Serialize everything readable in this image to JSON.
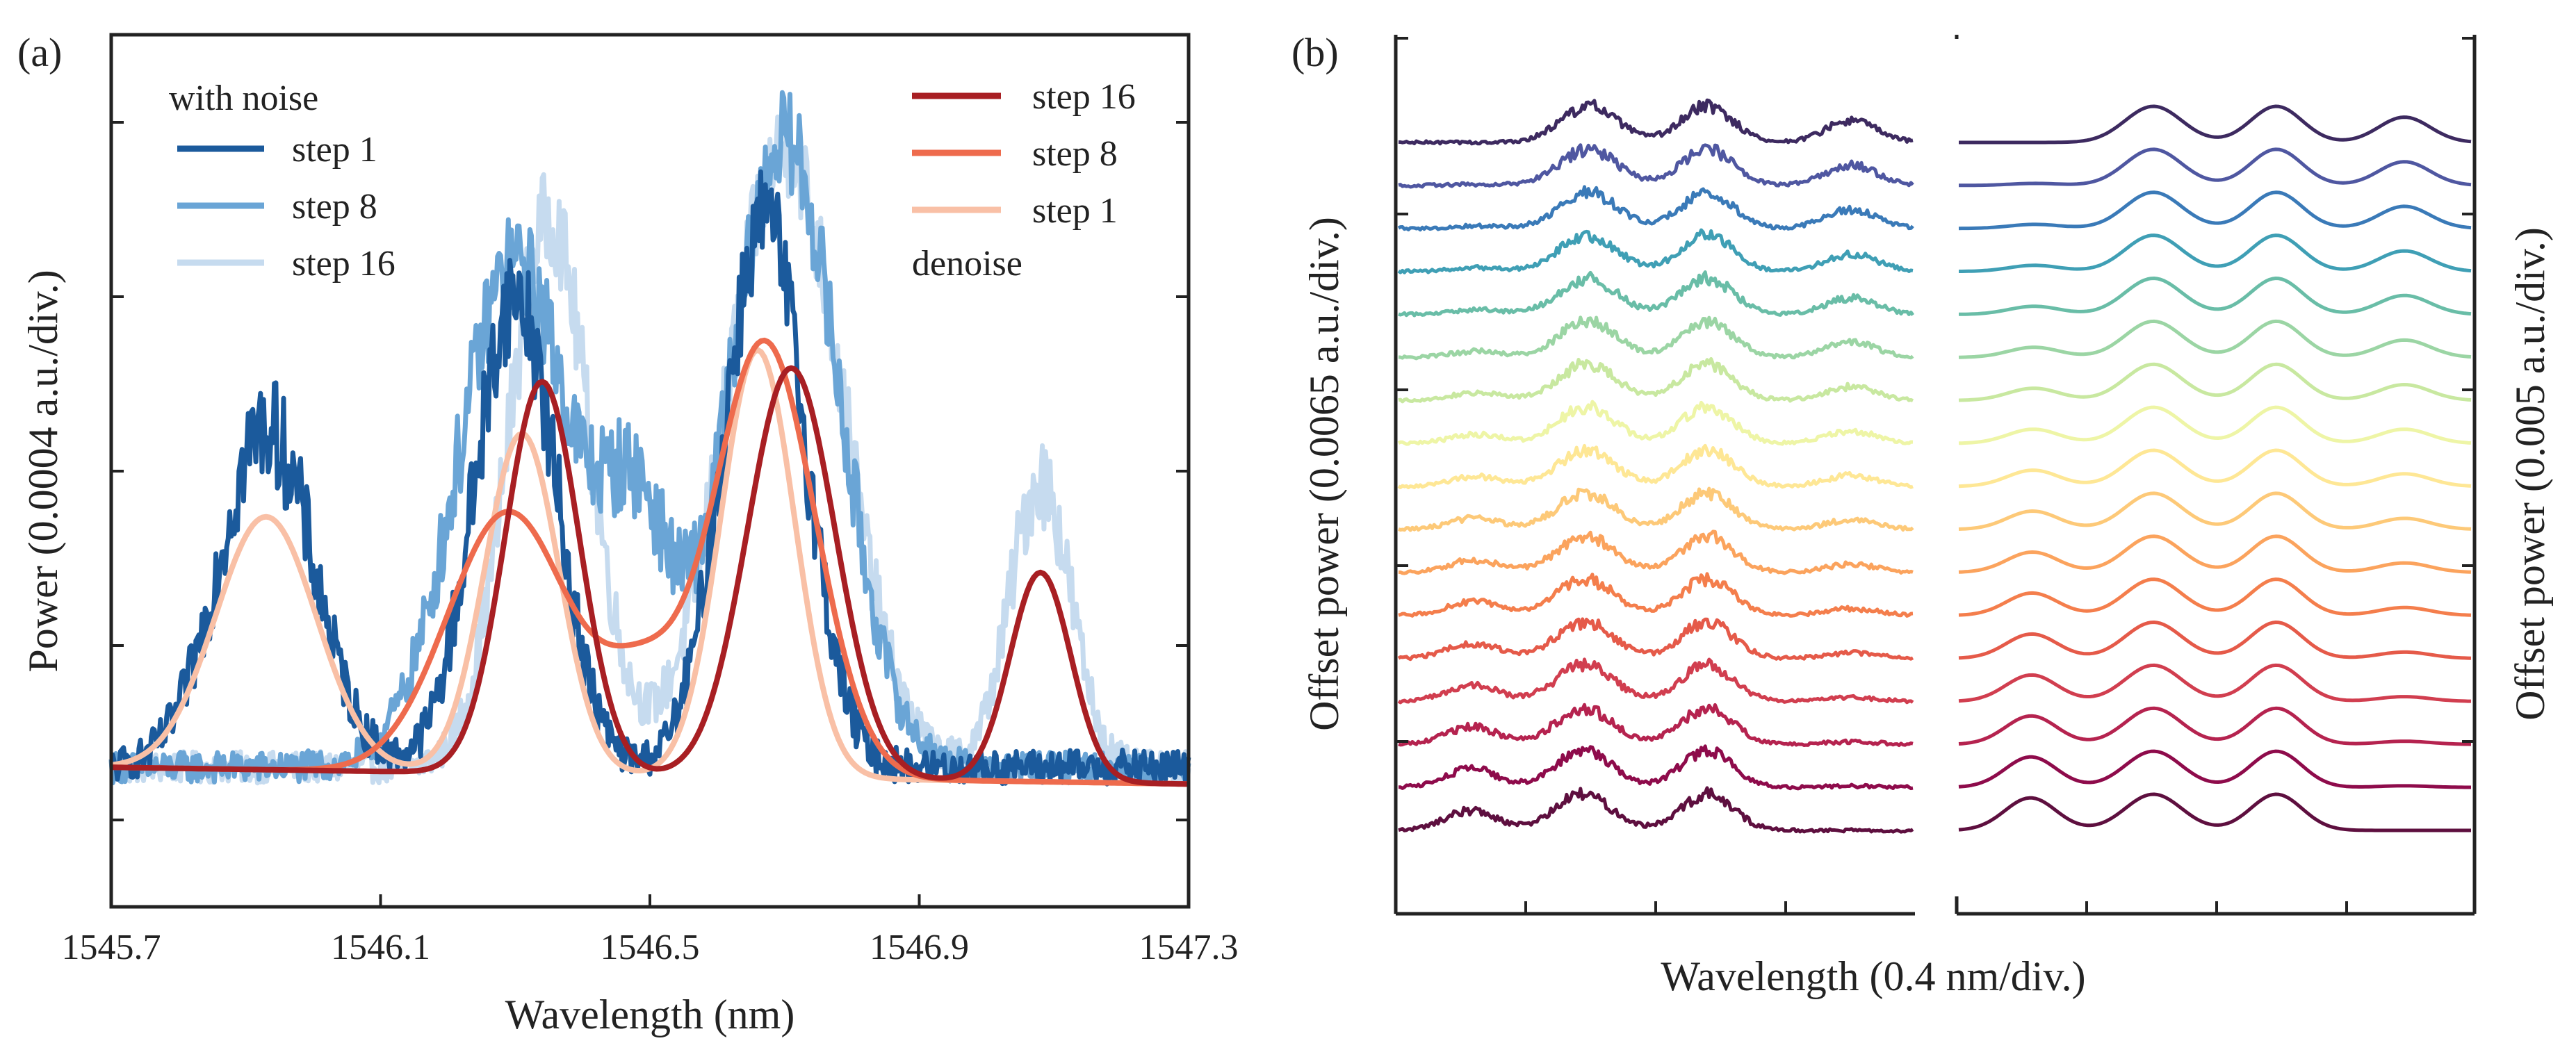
{
  "figure": {
    "panels": [
      "(a)",
      "(b)"
    ]
  },
  "chart_data": [
    {
      "id": "a",
      "type": "line",
      "panel_label": "(a)",
      "xlabel": "Wavelength (nm)",
      "ylabel": "Power (0.0004 a.u./div.)",
      "xlim": [
        1545.7,
        1547.3
      ],
      "ylim": [
        -0.5,
        4.5
      ],
      "x_ticks": [
        1545.7,
        1546.1,
        1546.5,
        1546.9,
        1547.3
      ],
      "x_tick_labels": [
        "1545.7",
        "1546.1",
        "1546.5",
        "1546.9",
        "1547.3"
      ],
      "y_ticks": [
        0,
        1,
        2,
        3,
        4
      ],
      "legend_groups": [
        {
          "title": "with noise",
          "position": "top-left",
          "entries": [
            "step 1",
            "step 8",
            "step 16"
          ]
        },
        {
          "title": "denoise",
          "position": "top-right",
          "entries": [
            "step 16",
            "step 8",
            "step 1"
          ]
        }
      ],
      "series": [
        {
          "name": "step 16",
          "group": "with noise",
          "color": "#c6dbef",
          "noisy": true,
          "noise_amp": 0.45,
          "baseline": 0.3,
          "peaks": [
            [
              1546.35,
              3.15,
              0.06
            ],
            [
              1546.7,
              3.55,
              0.085
            ],
            [
              1547.08,
              1.65,
              0.045
            ]
          ]
        },
        {
          "name": "step 8",
          "group": "with noise",
          "color": "#6aa5d6",
          "noisy": true,
          "noise_amp": 0.45,
          "baseline": 0.3,
          "peaks": [
            [
              1546.3,
              2.9,
              0.085
            ],
            [
              1546.48,
              1.3,
              0.05
            ],
            [
              1546.7,
              3.6,
              0.08
            ]
          ]
        },
        {
          "name": "step 1",
          "group": "with noise",
          "color": "#1b5a9c",
          "noisy": true,
          "noise_amp": 0.5,
          "baseline": 0.3,
          "peaks": [
            [
              1545.93,
              1.95,
              0.07
            ],
            [
              1546.3,
              2.7,
              0.06
            ],
            [
              1546.67,
              3.15,
              0.06
            ]
          ]
        },
        {
          "name": "step 1",
          "group": "denoise",
          "color": "#f9c0a6",
          "noisy": false,
          "baseline": 0.3,
          "peaks": [
            [
              1545.93,
              1.45,
              0.075
            ],
            [
              1546.31,
              1.95,
              0.055
            ],
            [
              1546.66,
              2.45,
              0.055
            ]
          ]
        },
        {
          "name": "step 8",
          "group": "denoise",
          "color": "#ee6b4d",
          "noisy": false,
          "baseline": 0.3,
          "peaks": [
            [
              1546.29,
              1.5,
              0.09
            ],
            [
              1546.49,
              0.5,
              0.06
            ],
            [
              1546.67,
              2.5,
              0.075
            ]
          ]
        },
        {
          "name": "step 16",
          "group": "denoise",
          "color": "#a81f23",
          "noisy": false,
          "baseline": 0.3,
          "peaks": [
            [
              1546.34,
              2.25,
              0.055
            ],
            [
              1546.71,
              2.35,
              0.065
            ],
            [
              1547.08,
              1.2,
              0.045
            ]
          ]
        }
      ]
    },
    {
      "id": "b",
      "type": "line",
      "panel_label": "(b)",
      "xlabel": "Wavelength (0.4 nm/div.)",
      "ylabel_left": "Offset power (0.0065 a.u./div.)",
      "ylabel_right": "Offset power (0.005 a.u./div.)",
      "trace_count": 17,
      "subplots": [
        {
          "name": "noisy",
          "noisy": true
        },
        {
          "name": "denoised",
          "noisy": false
        }
      ],
      "colormap": [
        "#5e0f3f",
        "#8e0b4b",
        "#b5234f",
        "#d13e4f",
        "#e55a49",
        "#f47e4c",
        "#fba35d",
        "#fdc978",
        "#fee795",
        "#eef5a6",
        "#c8e8a0",
        "#9bd5a4",
        "#69bda7",
        "#3f9fb5",
        "#3a7ab8",
        "#4f57a1",
        "#3d2a60"
      ]
    }
  ]
}
